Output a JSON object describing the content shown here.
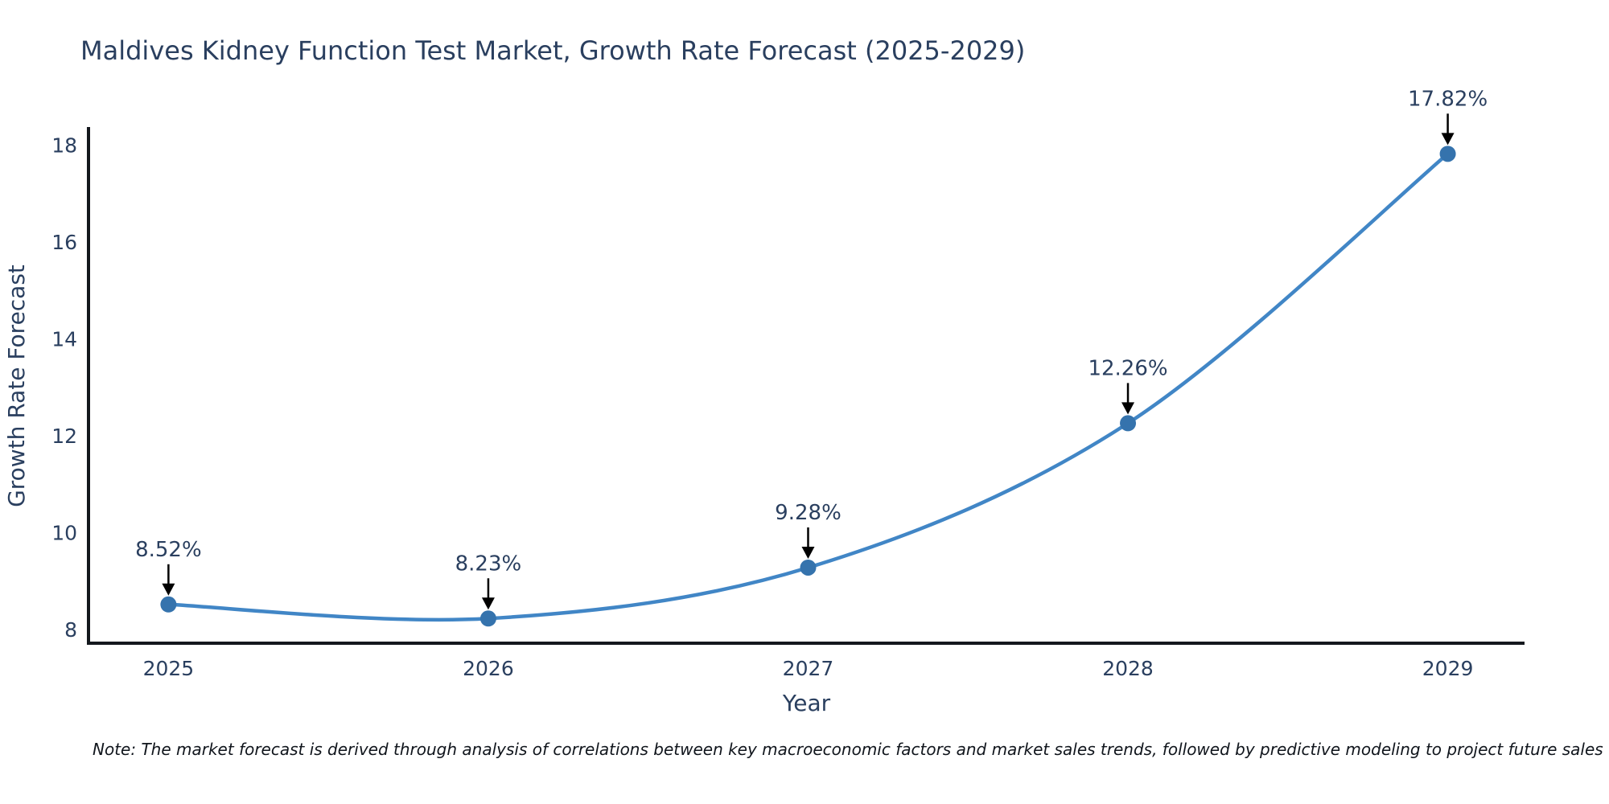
{
  "title": "Maldives Kidney Function Test Market, Growth Rate Forecast (2025-2029)",
  "note": "Note: The market forecast is derived through analysis of correlations between key macroeconomic factors and market sales trends, followed by predictive modeling to project future sales",
  "chart_data": {
    "type": "line",
    "title": "Maldives Kidney Function Test Market, Growth Rate Forecast (2025-2029)",
    "xlabel": "Year",
    "ylabel": "Growth Rate Forecast",
    "x": [
      2025,
      2026,
      2027,
      2028,
      2029
    ],
    "values": [
      8.52,
      8.23,
      9.28,
      12.26,
      17.82
    ],
    "point_labels": [
      "8.52%",
      "8.23%",
      "9.28%",
      "12.26%",
      "17.82%"
    ],
    "series": [
      {
        "name": "Growth Rate Forecast",
        "values": [
          8.52,
          8.23,
          9.28,
          12.26,
          17.82
        ]
      }
    ],
    "xticks": [
      "2025",
      "2026",
      "2027",
      "2028",
      "2029"
    ],
    "yticks": [
      8,
      10,
      12,
      14,
      16,
      18
    ],
    "xlim": [
      2024.75,
      2029.24
    ],
    "ylim": [
      7.72,
      18.34
    ],
    "line_shape": "spline",
    "grid": false,
    "legend_position": "none",
    "annotation_arrows": true,
    "colors": {
      "line": "#4186c6",
      "marker": "#3573ad",
      "axis_line": "#14181d",
      "text": "#2a3f5f",
      "arrow": "#000000",
      "background": "#ffffff"
    }
  }
}
